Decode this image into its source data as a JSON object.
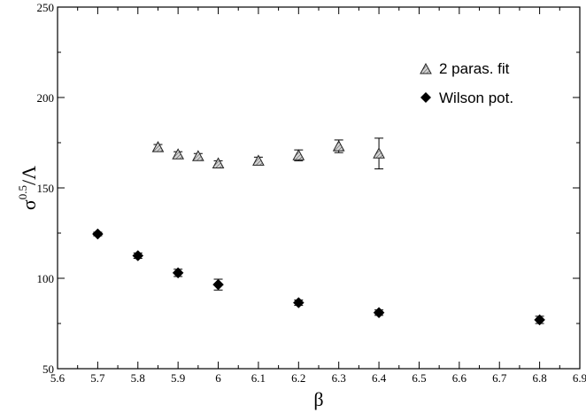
{
  "chart_data": {
    "type": "scatter",
    "title": "",
    "xlabel": "β",
    "ylabel": {
      "base": "σ",
      "superscript": "0.5",
      "suffix": "/Λ"
    },
    "xlim": [
      5.6,
      6.9
    ],
    "ylim": [
      50,
      250
    ],
    "xticks": [
      "5.6",
      "5.7",
      "5.8",
      "5.9",
      "6",
      "6.1",
      "6.2",
      "6.3",
      "6.4",
      "6.5",
      "6.6",
      "6.7",
      "6.8",
      "6.9"
    ],
    "yticks": [
      "50",
      "100",
      "150",
      "200",
      "250"
    ],
    "grid": false,
    "legend_position": "top-right",
    "series": [
      {
        "name": "2 paras. fit",
        "marker": "triangle",
        "color": "#9a9a9a",
        "points": [
          {
            "x": 5.85,
            "y": 172.5,
            "err": 1.5
          },
          {
            "x": 5.9,
            "y": 168.5,
            "err": 1.5
          },
          {
            "x": 5.95,
            "y": 167.5,
            "err": 1.5
          },
          {
            "x": 6.0,
            "y": 163.5,
            "err": 1.5
          },
          {
            "x": 6.1,
            "y": 165.0,
            "err": 2.0
          },
          {
            "x": 6.2,
            "y": 168.0,
            "err": 3.0
          },
          {
            "x": 6.3,
            "y": 173.0,
            "err": 3.5
          },
          {
            "x": 6.4,
            "y": 169.0,
            "err": 8.5
          }
        ]
      },
      {
        "name": "Wilson pot.",
        "marker": "diamond",
        "color": "#000000",
        "points": [
          {
            "x": 5.7,
            "y": 124.5,
            "err": 1.0
          },
          {
            "x": 5.8,
            "y": 112.5,
            "err": 1.5
          },
          {
            "x": 5.9,
            "y": 103.0,
            "err": 2.0
          },
          {
            "x": 6.0,
            "y": 96.5,
            "err": 3.0
          },
          {
            "x": 6.2,
            "y": 86.5,
            "err": 1.5
          },
          {
            "x": 6.4,
            "y": 81.0,
            "err": 1.5
          },
          {
            "x": 6.8,
            "y": 77.0,
            "err": 2.0
          }
        ]
      }
    ]
  }
}
